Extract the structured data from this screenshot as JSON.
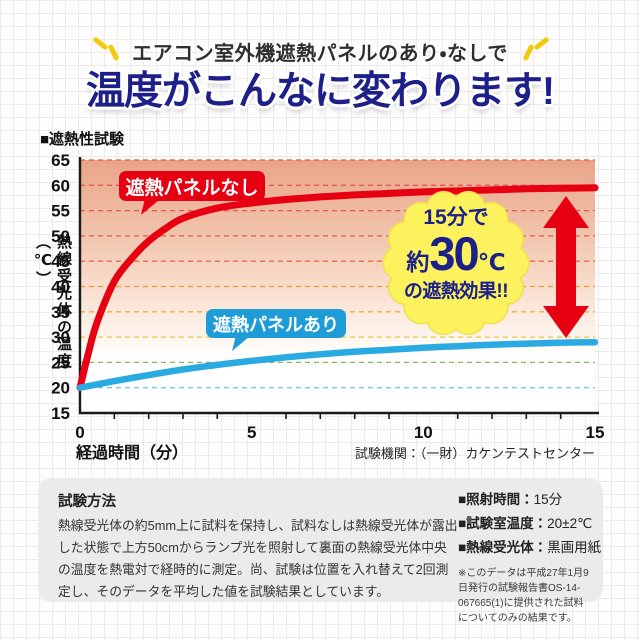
{
  "header": {
    "tagline": "エアコン室外機遮熱パネルのあり・なしで",
    "title": "温度がこんなに変わります!"
  },
  "section_label": "■遮熱性試験",
  "colors": {
    "red": "#e60012",
    "blue": "#29abe2",
    "blue_label": "#1e9cd8",
    "navy": "#1d2088",
    "badge_yellow": "#fbf25e",
    "badge_edge": "#efe24d",
    "gold": "#f2cb0c",
    "plot_gradient_top": "#eaa488"
  },
  "chart_data": {
    "type": "line",
    "title": "遮熱性試験",
    "xlabel": "経過時間（分）",
    "ylabel": "熱線受光体の温度（℃）",
    "xlim": [
      0,
      15
    ],
    "ylim": [
      15,
      65
    ],
    "xticks": [
      0,
      5,
      10,
      15
    ],
    "yticks": [
      15,
      20,
      25,
      30,
      35,
      40,
      45,
      50,
      55,
      60,
      65
    ],
    "grid": "horizontal dashed lines, color-coded from red (hot) to blue (cool)",
    "grid_colors": {
      "20": "#74c9ef",
      "25": "#85bb54",
      "30": "#e9c83e",
      "35": "#f1ad3a",
      "40": "#ef9a3f",
      "45": "#e76b47",
      "50": "#e2574a",
      "55": "#e4574e",
      "60": "#e4574e",
      "65": "#e4574e"
    },
    "series": [
      {
        "name": "遮熱パネルなし",
        "color": "#e60012",
        "width": 7,
        "x": [
          0,
          0.25,
          0.5,
          1,
          1.5,
          2,
          2.5,
          3,
          4,
          5,
          6,
          7,
          8,
          9,
          10,
          11,
          12,
          13,
          14,
          15
        ],
        "y": [
          20,
          27,
          33,
          41,
          45.5,
          49,
          51.5,
          53.5,
          55.5,
          56.5,
          57.2,
          57.7,
          58.1,
          58.4,
          58.7,
          58.9,
          59.1,
          59.3,
          59.4,
          59.5
        ]
      },
      {
        "name": "遮熱パネルあり",
        "color": "#29abe2",
        "width": 6.5,
        "x": [
          0,
          1,
          2,
          3,
          4,
          5,
          6,
          7,
          8,
          9,
          10,
          11,
          12,
          13,
          14,
          15
        ],
        "y": [
          20,
          21.3,
          22.5,
          23.6,
          24.5,
          25.3,
          26.0,
          26.6,
          27.1,
          27.5,
          27.9,
          28.2,
          28.5,
          28.7,
          28.9,
          29.0
        ]
      }
    ],
    "source": "試験機関：（一財）カケンテストセンター"
  },
  "badge": {
    "line1": "15分で",
    "value_prefix": "約",
    "value": "30",
    "unit": "℃",
    "line3": "の遮熱効果!!"
  },
  "footer_box": {
    "method_title": "試験方法",
    "method_body": "熱線受光体の約5mm上に試料を保持し、試料なしは熱線受光体が露出した状態で上方50cmからランプ光を照射して裏面の熱線受光体中央の温度を熱電対で経時的に測定。尚、試験は位置を入れ替えて2回測定し、そのデータを平均した値を試験結果としています。",
    "specs": [
      {
        "label": "■照射時間：",
        "value": "15分"
      },
      {
        "label": "■試験室温度：",
        "value": "20±2℃"
      },
      {
        "label": "■熱線受光体：",
        "value": "黒画用紙"
      }
    ],
    "footnote": "※このデータは平成27年1月9日発行の試験報告書OS-14-067665(1)に提供された試料についてのみの結果です。"
  }
}
